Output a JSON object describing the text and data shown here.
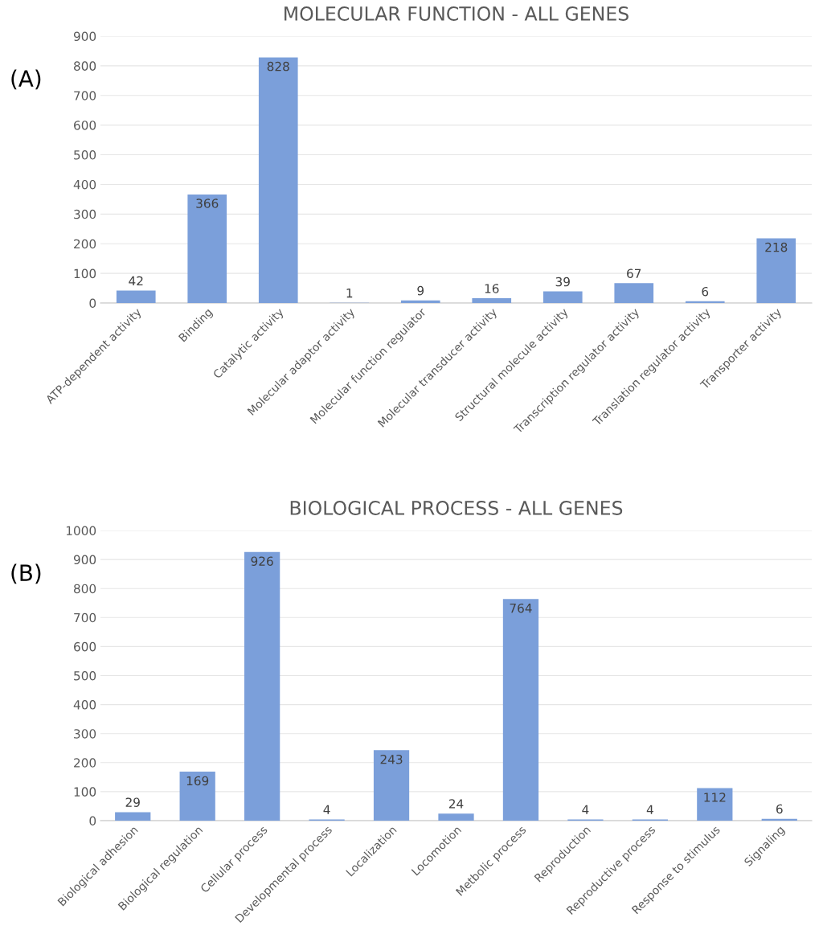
{
  "chart_data": [
    {
      "type": "bar",
      "title": "MOLECULAR FUNCTION - ALL GENES",
      "annotations": [
        "(A)"
      ],
      "categories": [
        "ATP-dependent activity",
        "Binding",
        "Catalytic activity",
        "Molecular adaptor activity",
        "Molecular function regulator",
        "Molecular transducer activity",
        "Structural molecule activity",
        "Transcription regulator activity",
        "Translation regulator activity",
        "Transporter activity"
      ],
      "values": [
        42,
        366,
        828,
        1,
        9,
        16,
        39,
        67,
        6,
        218
      ],
      "color": "#7b9fda",
      "ylim": [
        0,
        900
      ],
      "yticks": [
        0,
        100,
        200,
        300,
        400,
        500,
        600,
        700,
        800,
        900
      ],
      "grid": "y",
      "data_labels": true
    },
    {
      "type": "bar",
      "title": "BIOLOGICAL PROCESS - ALL GENES",
      "annotations": [
        "(B)"
      ],
      "categories": [
        "Biological adhesion",
        "Biological regulation",
        "Cellular process",
        "Developmental process",
        "Localization",
        "Locomotion",
        "Metbolic process",
        "Reproduction",
        "Reproductive process",
        "Response to stimulus",
        "Signaling"
      ],
      "values": [
        29,
        169,
        926,
        4,
        243,
        24,
        764,
        4,
        4,
        112,
        6
      ],
      "color": "#7b9fda",
      "ylim": [
        0,
        1000
      ],
      "yticks": [
        0,
        100,
        200,
        300,
        400,
        500,
        600,
        700,
        800,
        900,
        1000
      ],
      "grid": "y",
      "data_labels": true
    }
  ]
}
